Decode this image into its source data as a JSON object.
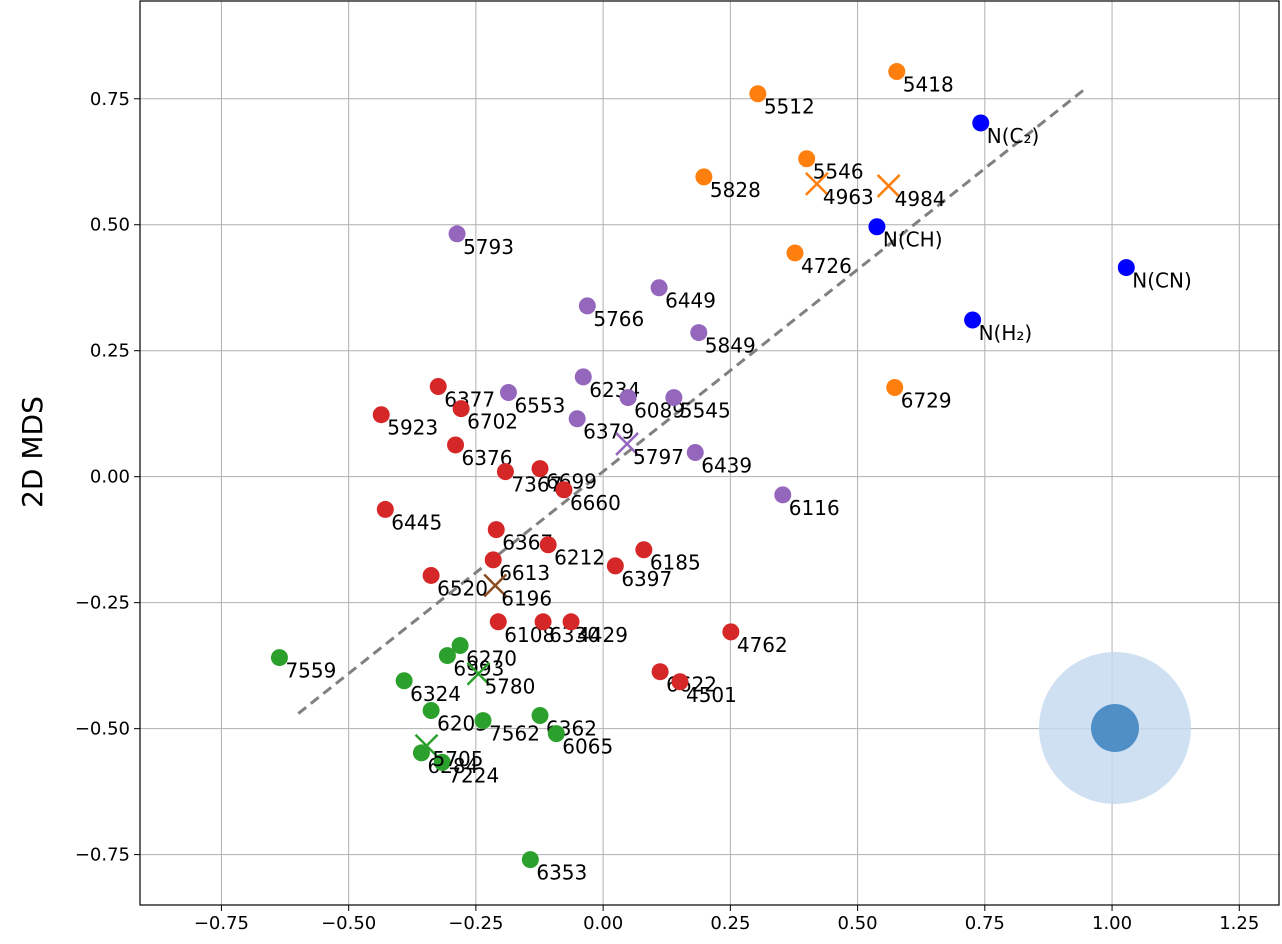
{
  "chart_data": {
    "type": "scatter",
    "y_label": "2D MDS",
    "xlim": [
      -0.91,
      1.33
    ],
    "ylim": [
      -0.85,
      0.944
    ],
    "xticks": [
      {
        "value": -0.75,
        "label": "−0.75"
      },
      {
        "value": -0.5,
        "label": "−0.50"
      },
      {
        "value": -0.25,
        "label": "−0.25"
      },
      {
        "value": 0,
        "label": "0.00"
      },
      {
        "value": 0.25,
        "label": "0.25"
      },
      {
        "value": 0.5,
        "label": "0.50"
      },
      {
        "value": 0.75,
        "label": "0.75"
      },
      {
        "value": 1,
        "label": "1.00"
      },
      {
        "value": 1.25,
        "label": "1.25"
      }
    ],
    "yticks": [
      {
        "value": -0.75,
        "label": "−0.75"
      },
      {
        "value": -0.5,
        "label": "−0.50"
      },
      {
        "value": -0.25,
        "label": "−0.25"
      },
      {
        "value": 0,
        "label": "0.00"
      },
      {
        "value": 0.25,
        "label": "0.25"
      },
      {
        "value": 0.5,
        "label": "0.50"
      },
      {
        "value": 0.75,
        "label": "0.75"
      }
    ],
    "grid": true,
    "reference_line": {
      "x": [
        -0.599,
        0.95
      ],
      "values": [
        -0.47,
        0.772
      ],
      "color": "#808080"
    },
    "series": [
      {
        "color": "#ff7f0e",
        "marker": "o",
        "labels": [
          "5418",
          "5512",
          "5546",
          "5828",
          "4726",
          "6729"
        ],
        "x": [
          0.577,
          0.304,
          0.4,
          0.198,
          0.377,
          0.573
        ],
        "values": [
          0.804,
          0.76,
          0.631,
          0.595,
          0.444,
          0.177
        ]
      },
      {
        "color": "#ff7f0e",
        "marker": "x",
        "labels": [
          "4963",
          "4984"
        ],
        "x": [
          0.42,
          0.561
        ],
        "values": [
          0.581,
          0.577
        ]
      },
      {
        "color": "#0000ff",
        "marker": "o",
        "labels": [
          "N(C₂)",
          "N(CH)",
          "N(CN)",
          "N(H₂)"
        ],
        "x": [
          0.742,
          0.538,
          1.028,
          0.726
        ],
        "values": [
          0.702,
          0.496,
          0.415,
          0.311
        ]
      },
      {
        "color": "#9467bd",
        "marker": "o",
        "labels": [
          "5793",
          "6449",
          "5766",
          "5849",
          "6234",
          "6553",
          "6089",
          "5545",
          "6379",
          "6439",
          "6116"
        ],
        "x": [
          -0.287,
          0.11,
          -0.031,
          0.188,
          -0.039,
          -0.186,
          0.049,
          0.139,
          -0.051,
          0.181,
          0.353
        ],
        "values": [
          0.482,
          0.375,
          0.339,
          0.286,
          0.198,
          0.167,
          0.157,
          0.157,
          0.115,
          0.048,
          -0.036
        ]
      },
      {
        "color": "#9467bd",
        "marker": "x",
        "labels": [
          "5797"
        ],
        "x": [
          0.047
        ],
        "values": [
          0.065
        ]
      },
      {
        "color": "#d62728",
        "marker": "o",
        "labels": [
          "6377",
          "5923",
          "6702",
          "6376",
          "7367",
          "6699",
          "6660",
          "6445",
          "6367",
          "6212",
          "6185",
          "6613",
          "6397",
          "6520",
          "6108",
          "6330",
          "4429",
          "4762",
          "6622",
          "4501"
        ],
        "x": [
          -0.324,
          -0.436,
          -0.279,
          -0.29,
          -0.192,
          -0.124,
          -0.077,
          -0.428,
          -0.21,
          -0.108,
          0.08,
          -0.216,
          0.024,
          -0.338,
          -0.206,
          -0.118,
          -0.063,
          0.251,
          0.112,
          0.151
        ],
        "values": [
          0.179,
          0.123,
          0.135,
          0.063,
          0.01,
          0.016,
          -0.026,
          -0.065,
          -0.105,
          -0.135,
          -0.145,
          -0.165,
          -0.177,
          -0.196,
          -0.288,
          -0.288,
          -0.288,
          -0.308,
          -0.387,
          -0.407
        ]
      },
      {
        "color": "#8c4a1f",
        "marker": "x",
        "labels": [
          "6196"
        ],
        "x": [
          -0.212
        ],
        "values": [
          -0.216
        ]
      },
      {
        "color": "#2ca02c",
        "marker": "o",
        "labels": [
          "7559",
          "6270",
          "6993",
          "6324",
          "6203",
          "6284",
          "7224",
          "7562",
          "6362",
          "6065",
          "6353"
        ],
        "x": [
          -0.636,
          -0.281,
          -0.306,
          -0.391,
          -0.338,
          -0.357,
          -0.316,
          -0.236,
          -0.124,
          -0.092,
          -0.143
        ],
        "values": [
          -0.359,
          -0.335,
          -0.355,
          -0.405,
          -0.464,
          -0.548,
          -0.567,
          -0.484,
          -0.474,
          -0.51,
          -0.76
        ]
      },
      {
        "color": "#2ca02c",
        "marker": "x",
        "labels": [
          "5780",
          "5705"
        ],
        "x": [
          -0.245,
          -0.347
        ],
        "values": [
          -0.391,
          -0.534
        ]
      }
    ]
  }
}
